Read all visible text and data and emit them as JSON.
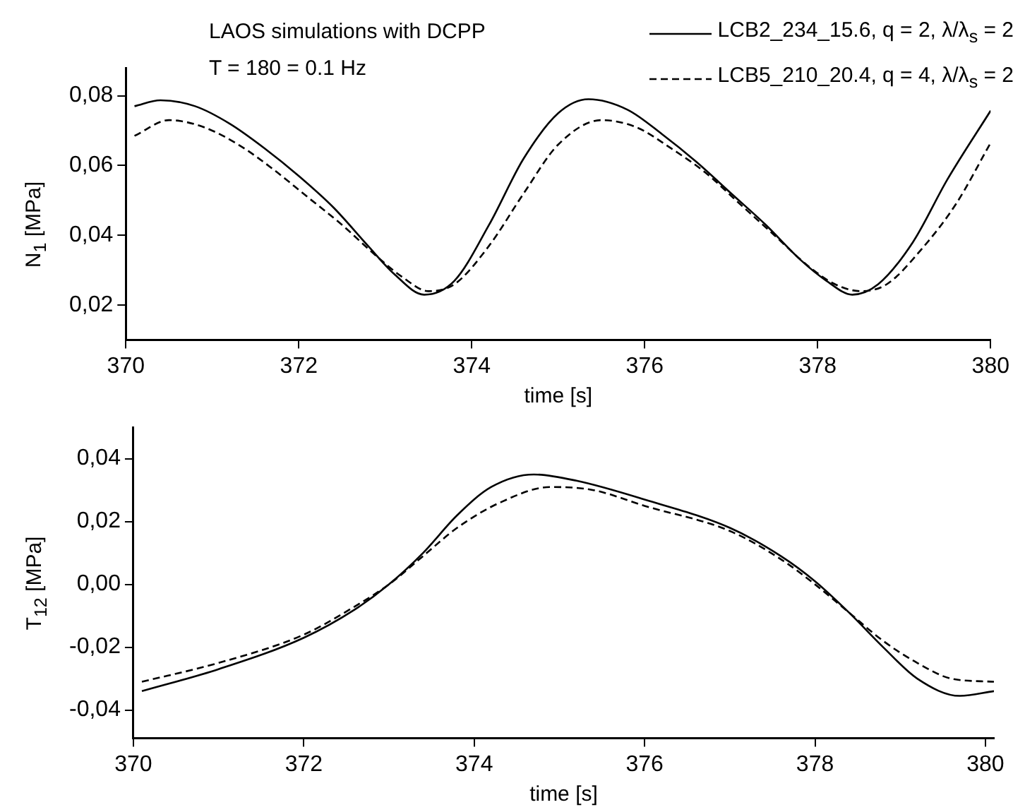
{
  "chart_data": [
    {
      "type": "line",
      "ylabel": "N$_{1}$ [MPa]",
      "xlabel": "time [s]",
      "annotations": [
        "LAOS simulations with DCPP",
        "T = 180  = 0.1 Hz"
      ],
      "legend": "top right",
      "grid": false,
      "marker": "none",
      "xlim": [
        370,
        380
      ],
      "xticks": [
        370,
        372,
        374,
        376,
        378,
        380
      ],
      "ylim": [
        0.01,
        0.088
      ],
      "yticks": [
        {
          "value": 0.02,
          "label": "0,02"
        },
        {
          "value": 0.04,
          "label": "0,04"
        },
        {
          "value": 0.06,
          "label": "0,06"
        },
        {
          "value": 0.08,
          "label": "0,08"
        }
      ],
      "series": [
        {
          "name": "LCB2_234_15.6, q = 2, λ/λ$_{s}$ = 2",
          "color": "#000000",
          "line_style": "solid",
          "x": [
            370.1,
            370.4,
            370.8,
            371.2,
            371.6,
            372,
            372.4,
            372.8,
            373.1,
            373.45,
            373.8,
            374.2,
            374.6,
            375,
            375.35,
            375.8,
            376.2,
            376.6,
            377,
            377.4,
            377.8,
            378.1,
            378.4,
            378.7,
            379.1,
            379.5,
            380
          ],
          "values": [
            0.077,
            0.0787,
            0.077,
            0.072,
            0.065,
            0.057,
            0.048,
            0.037,
            0.029,
            0.023,
            0.027,
            0.043,
            0.062,
            0.075,
            0.079,
            0.076,
            0.069,
            0.061,
            0.052,
            0.043,
            0.033,
            0.027,
            0.023,
            0.026,
            0.038,
            0.056,
            0.0757
          ]
        },
        {
          "name": "LCB5_210_20.4, q = 4, λ/λ$_{s}$ = 2",
          "color": "#000000",
          "line_style": "dashed",
          "x": [
            370.1,
            370.5,
            370.9,
            371.3,
            371.7,
            372.1,
            372.5,
            372.9,
            373.2,
            373.5,
            373.8,
            374.2,
            374.6,
            375,
            375.5,
            375.9,
            376.3,
            376.7,
            377.1,
            377.5,
            377.9,
            378.2,
            378.5,
            378.8,
            379.2,
            379.6,
            380
          ],
          "values": [
            0.0685,
            0.073,
            0.071,
            0.066,
            0.059,
            0.051,
            0.043,
            0.034,
            0.028,
            0.024,
            0.026,
            0.037,
            0.052,
            0.066,
            0.073,
            0.071,
            0.065,
            0.058,
            0.049,
            0.04,
            0.031,
            0.026,
            0.024,
            0.026,
            0.036,
            0.049,
            0.0665
          ]
        }
      ]
    },
    {
      "type": "line",
      "ylabel": "T$_{12}$ [MPa]",
      "xlabel": "time [s]",
      "grid": false,
      "marker": "none",
      "xlim": [
        370,
        380.1
      ],
      "xticks": [
        370,
        372,
        374,
        376,
        378,
        380
      ],
      "ylim": [
        -0.049,
        0.05
      ],
      "yticks": [
        {
          "value": -0.04,
          "label": "-0,04"
        },
        {
          "value": -0.02,
          "label": "-0,02"
        },
        {
          "value": 0,
          "label": "0,00"
        },
        {
          "value": 0.02,
          "label": "0,02"
        },
        {
          "value": 0.04,
          "label": "0,04"
        }
      ],
      "series": [
        {
          "color": "#000000",
          "line_style": "solid",
          "x": [
            370.1,
            371,
            372,
            372.6,
            373,
            373.4,
            373.8,
            374.2,
            374.7,
            375.2,
            376,
            377,
            377.6,
            378,
            378.4,
            378.8,
            379.2,
            379.7,
            380.1
          ],
          "values": [
            -0.034,
            -0.027,
            -0.017,
            -0.008,
            0,
            0.01,
            0.022,
            0.031,
            0.035,
            0.033,
            0.027,
            0.018,
            0.009,
            0.001,
            -0.009,
            -0.02,
            -0.03,
            -0.0355,
            -0.034
          ]
        },
        {
          "color": "#000000",
          "line_style": "dashed",
          "x": [
            370.1,
            371,
            372,
            372.6,
            373,
            373.4,
            373.8,
            374.3,
            374.9,
            375.4,
            376,
            377,
            377.6,
            378,
            378.4,
            378.8,
            379.2,
            379.6,
            380.1
          ],
          "values": [
            -0.031,
            -0.025,
            -0.016,
            -0.007,
            0,
            0.009,
            0.018,
            0.026,
            0.031,
            0.03,
            0.025,
            0.017,
            0.008,
            0,
            -0.009,
            -0.018,
            -0.025,
            -0.03,
            -0.031
          ]
        }
      ]
    }
  ]
}
